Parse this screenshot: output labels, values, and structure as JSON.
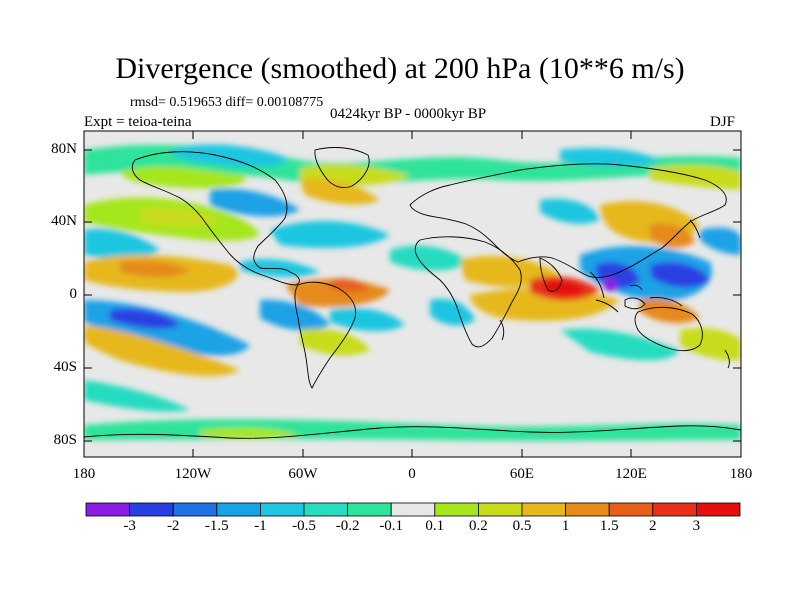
{
  "title": "Divergence (smoothed) at 200 hPa (10**6 m/s)",
  "stats_text": "rmsd= 0.519653 diff= 0.00108775",
  "period_text": "0424kyr BP - 0000kyr BP",
  "experiment_text": "Expt = teioa-teina",
  "season": "DJF",
  "lat_labels": [
    "80N",
    "40N",
    "0",
    "40S",
    "80S"
  ],
  "lon_labels": [
    "180",
    "120W",
    "60W",
    "0",
    "60E",
    "120E",
    "180"
  ],
  "colorbar": {
    "labels": [
      "-3",
      "-2",
      "-1.5",
      "-1",
      "-0.5",
      "-0.2",
      "-0.1",
      "0.1",
      "0.2",
      "0.5",
      "1",
      "1.5",
      "2",
      "3"
    ],
    "colors": [
      "#8a1ee6",
      "#2a3fe3",
      "#1f73e6",
      "#1aa2e6",
      "#1fc6e0",
      "#27dcc0",
      "#2ee39a",
      "#e8e8e8",
      "#a6e61a",
      "#c9dc1a",
      "#e6b81a",
      "#e68a1a",
      "#e6601a",
      "#e6301a",
      "#e60f0f"
    ]
  },
  "colors": {
    "background": "#e8e8e8",
    "coastline": "#000000"
  }
}
